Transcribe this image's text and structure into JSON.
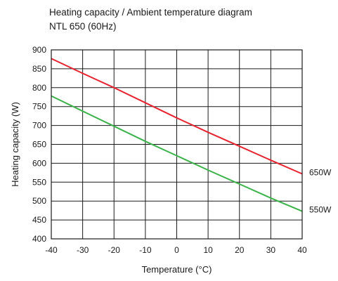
{
  "chart_data": {
    "type": "line",
    "title": "Heating capacity / Ambient temperature diagram",
    "subtitle": "NTL 650 (60Hz)",
    "xlabel": "Temperature (°C)",
    "ylabel": "Heating capacity (W)",
    "xlim": [
      -40,
      40
    ],
    "ylim": [
      400,
      900
    ],
    "x_ticks": [
      "-40",
      "-30",
      "-20",
      "-10",
      "0",
      "10",
      "20",
      "30",
      "40"
    ],
    "y_ticks": [
      "400",
      "450",
      "500",
      "550",
      "600",
      "650",
      "700",
      "750",
      "800",
      "850",
      "900"
    ],
    "grid": true,
    "legend": "series labels at right end of lines",
    "series": [
      {
        "name": "650W",
        "color": "#e8232f",
        "x": [
          -40,
          -30,
          -20,
          -10,
          0,
          10,
          20,
          30,
          40
        ],
        "y": [
          877,
          838,
          800,
          760,
          720,
          682,
          645,
          608,
          572
        ]
      },
      {
        "name": "550W",
        "color": "#3bb34a",
        "x": [
          -40,
          -30,
          -20,
          -10,
          0,
          10,
          20,
          30,
          40
        ],
        "y": [
          778,
          738,
          698,
          658,
          620,
          582,
          545,
          508,
          473
        ]
      }
    ]
  }
}
